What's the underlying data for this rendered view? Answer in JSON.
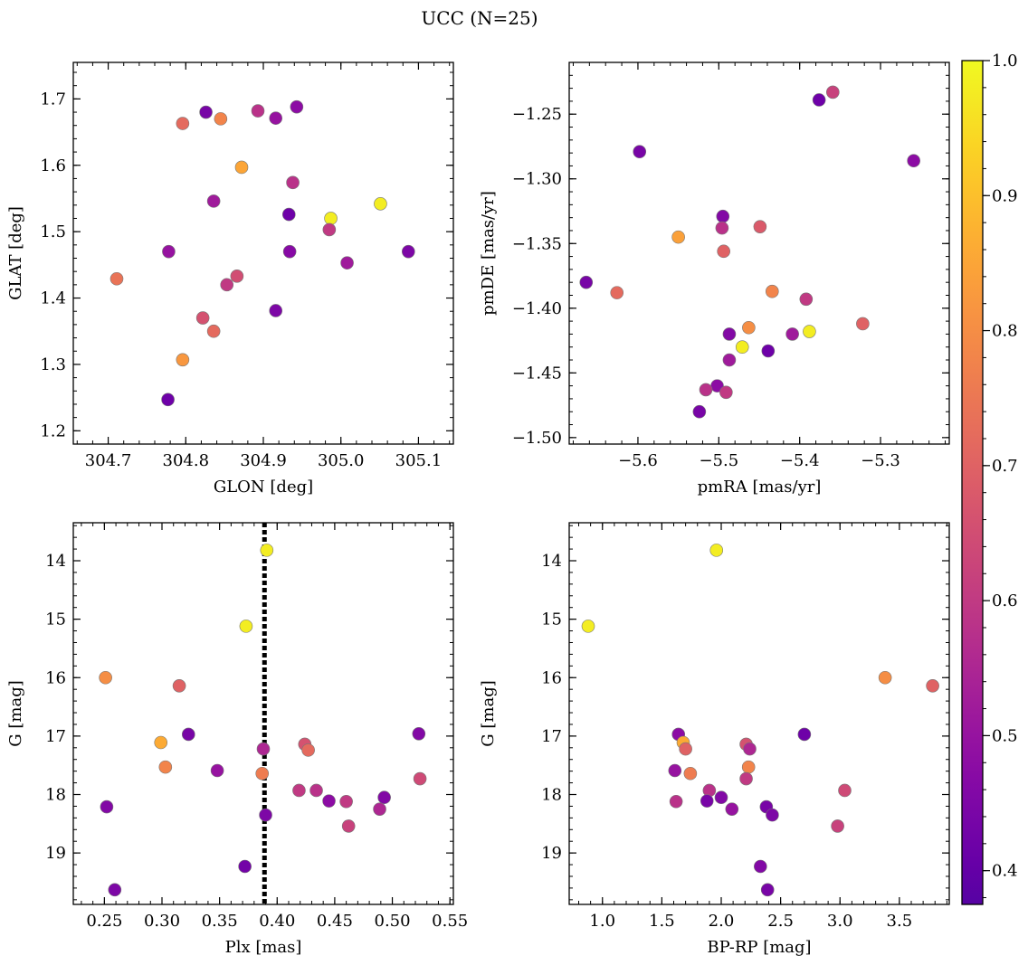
{
  "title": "UCC (N=25)",
  "chart_data": [
    {
      "type": "scatter",
      "xlabel": "GLON [deg]",
      "ylabel": "GLAT [deg]",
      "xlim": [
        304.655,
        305.145
      ],
      "ylim": [
        1.18,
        1.755
      ],
      "xticks": [
        304.7,
        304.8,
        304.9,
        305.0,
        305.1
      ],
      "xtick_labels": [
        "304.7",
        "304.8",
        "304.9",
        "305.0",
        "305.1"
      ],
      "yticks": [
        1.2,
        1.3,
        1.4,
        1.5,
        1.6,
        1.7
      ],
      "ytick_labels": [
        "1.2",
        "1.3",
        "1.4",
        "1.5",
        "1.6",
        "1.7"
      ],
      "y_inverted": false,
      "points": [
        {
          "x": 304.987,
          "y": 1.52,
          "c": 0.98
        },
        {
          "x": 304.893,
          "y": 1.682,
          "c": 0.58
        },
        {
          "x": 304.777,
          "y": 1.247,
          "c": 0.42
        },
        {
          "x": 304.796,
          "y": 1.307,
          "c": 0.82
        },
        {
          "x": 304.866,
          "y": 1.433,
          "c": 0.65
        },
        {
          "x": 305.087,
          "y": 1.47,
          "c": 0.45
        },
        {
          "x": 304.836,
          "y": 1.35,
          "c": 0.72
        },
        {
          "x": 304.778,
          "y": 1.47,
          "c": 0.5
        },
        {
          "x": 304.938,
          "y": 1.574,
          "c": 0.58
        },
        {
          "x": 304.872,
          "y": 1.597,
          "c": 0.85
        },
        {
          "x": 304.836,
          "y": 1.546,
          "c": 0.52
        },
        {
          "x": 305.008,
          "y": 1.453,
          "c": 0.52
        },
        {
          "x": 304.822,
          "y": 1.37,
          "c": 0.66
        },
        {
          "x": 304.845,
          "y": 1.67,
          "c": 0.78
        },
        {
          "x": 304.985,
          "y": 1.503,
          "c": 0.6
        },
        {
          "x": 304.916,
          "y": 1.381,
          "c": 0.45
        },
        {
          "x": 304.853,
          "y": 1.42,
          "c": 0.6
        },
        {
          "x": 305.051,
          "y": 1.542,
          "c": 0.98
        },
        {
          "x": 304.934,
          "y": 1.47,
          "c": 0.47
        },
        {
          "x": 304.916,
          "y": 1.671,
          "c": 0.5
        },
        {
          "x": 304.933,
          "y": 1.526,
          "c": 0.42
        },
        {
          "x": 304.711,
          "y": 1.429,
          "c": 0.74
        },
        {
          "x": 304.796,
          "y": 1.663,
          "c": 0.72
        },
        {
          "x": 304.943,
          "y": 1.688,
          "c": 0.48
        },
        {
          "x": 304.826,
          "y": 1.68,
          "c": 0.44
        }
      ]
    },
    {
      "type": "scatter",
      "xlabel": "pmRA [mas/yr]",
      "ylabel": "pmDE [mas/yr]",
      "xlim": [
        -5.685,
        -5.215
      ],
      "ylim": [
        -1.505,
        -1.21
      ],
      "xticks": [
        -5.6,
        -5.5,
        -5.4,
        -5.3
      ],
      "xtick_labels": [
        "−5.6",
        "−5.5",
        "−5.4",
        "−5.3"
      ],
      "yticks": [
        -1.5,
        -1.45,
        -1.4,
        -1.35,
        -1.3,
        -1.25
      ],
      "ytick_labels": [
        "−1.50",
        "−1.45",
        "−1.40",
        "−1.35",
        "−1.30",
        "−1.25"
      ],
      "y_inverted": false,
      "points": [
        {
          "x": -5.471,
          "y": -1.43,
          "c": 0.98
        },
        {
          "x": -5.388,
          "y": -1.418,
          "c": 0.98
        },
        {
          "x": -5.359,
          "y": -1.233,
          "c": 0.62
        },
        {
          "x": -5.376,
          "y": -1.239,
          "c": 0.42
        },
        {
          "x": -5.598,
          "y": -1.279,
          "c": 0.44
        },
        {
          "x": -5.259,
          "y": -1.286,
          "c": 0.48
        },
        {
          "x": -5.495,
          "y": -1.329,
          "c": 0.46
        },
        {
          "x": -5.496,
          "y": -1.338,
          "c": 0.58
        },
        {
          "x": -5.449,
          "y": -1.337,
          "c": 0.68
        },
        {
          "x": -5.55,
          "y": -1.345,
          "c": 0.84
        },
        {
          "x": -5.494,
          "y": -1.356,
          "c": 0.7
        },
        {
          "x": -5.664,
          "y": -1.38,
          "c": 0.44
        },
        {
          "x": -5.626,
          "y": -1.388,
          "c": 0.72
        },
        {
          "x": -5.434,
          "y": -1.387,
          "c": 0.78
        },
        {
          "x": -5.392,
          "y": -1.393,
          "c": 0.6
        },
        {
          "x": -5.322,
          "y": -1.412,
          "c": 0.7
        },
        {
          "x": -5.463,
          "y": -1.415,
          "c": 0.8
        },
        {
          "x": -5.487,
          "y": -1.42,
          "c": 0.46
        },
        {
          "x": -5.409,
          "y": -1.42,
          "c": 0.52
        },
        {
          "x": -5.439,
          "y": -1.433,
          "c": 0.42
        },
        {
          "x": -5.487,
          "y": -1.44,
          "c": 0.52
        },
        {
          "x": -5.502,
          "y": -1.46,
          "c": 0.48
        },
        {
          "x": -5.516,
          "y": -1.463,
          "c": 0.58
        },
        {
          "x": -5.491,
          "y": -1.465,
          "c": 0.6
        },
        {
          "x": -5.524,
          "y": -1.48,
          "c": 0.44
        }
      ]
    },
    {
      "type": "scatter",
      "xlabel": "Plx [mas]",
      "ylabel": "G [mag]",
      "xlim": [
        0.223,
        0.553
      ],
      "ylim": [
        13.35,
        19.88
      ],
      "xticks": [
        0.25,
        0.3,
        0.35,
        0.4,
        0.45,
        0.5,
        0.55
      ],
      "xtick_labels": [
        "0.25",
        "0.30",
        "0.35",
        "0.40",
        "0.45",
        "0.50",
        "0.55"
      ],
      "yticks": [
        14,
        15,
        16,
        17,
        18,
        19
      ],
      "ytick_labels": [
        "14",
        "15",
        "16",
        "17",
        "18",
        "19"
      ],
      "y_inverted": true,
      "vline": 0.389,
      "points": [
        {
          "x": 0.391,
          "y": 13.82,
          "c": 0.98
        },
        {
          "x": 0.373,
          "y": 15.12,
          "c": 0.98
        },
        {
          "x": 0.251,
          "y": 16.0,
          "c": 0.8
        },
        {
          "x": 0.315,
          "y": 16.14,
          "c": 0.7
        },
        {
          "x": 0.523,
          "y": 16.96,
          "c": 0.46
        },
        {
          "x": 0.323,
          "y": 16.97,
          "c": 0.44
        },
        {
          "x": 0.299,
          "y": 17.11,
          "c": 0.86
        },
        {
          "x": 0.424,
          "y": 17.14,
          "c": 0.66
        },
        {
          "x": 0.388,
          "y": 17.22,
          "c": 0.55
        },
        {
          "x": 0.427,
          "y": 17.24,
          "c": 0.72
        },
        {
          "x": 0.303,
          "y": 17.53,
          "c": 0.78
        },
        {
          "x": 0.348,
          "y": 17.59,
          "c": 0.5
        },
        {
          "x": 0.387,
          "y": 17.64,
          "c": 0.76
        },
        {
          "x": 0.524,
          "y": 17.73,
          "c": 0.64
        },
        {
          "x": 0.419,
          "y": 17.93,
          "c": 0.6
        },
        {
          "x": 0.434,
          "y": 17.93,
          "c": 0.58
        },
        {
          "x": 0.493,
          "y": 18.05,
          "c": 0.46
        },
        {
          "x": 0.445,
          "y": 18.11,
          "c": 0.48
        },
        {
          "x": 0.46,
          "y": 18.12,
          "c": 0.6
        },
        {
          "x": 0.252,
          "y": 18.21,
          "c": 0.46
        },
        {
          "x": 0.489,
          "y": 18.25,
          "c": 0.55
        },
        {
          "x": 0.39,
          "y": 18.35,
          "c": 0.45
        },
        {
          "x": 0.462,
          "y": 18.54,
          "c": 0.62
        },
        {
          "x": 0.372,
          "y": 19.23,
          "c": 0.43
        },
        {
          "x": 0.259,
          "y": 19.63,
          "c": 0.45
        }
      ]
    },
    {
      "type": "scatter",
      "xlabel": "BP-RP [mag]",
      "ylabel": "G [mag]",
      "xlim": [
        0.72,
        3.92
      ],
      "ylim": [
        13.35,
        19.88
      ],
      "xticks": [
        1.0,
        1.5,
        2.0,
        2.5,
        3.0,
        3.5
      ],
      "xtick_labels": [
        "1.0",
        "1.5",
        "2.0",
        "2.5",
        "3.0",
        "3.5"
      ],
      "yticks": [
        14,
        15,
        16,
        17,
        18,
        19
      ],
      "ytick_labels": [
        "14",
        "15",
        "16",
        "17",
        "18",
        "19"
      ],
      "y_inverted": true,
      "points": [
        {
          "x": 1.96,
          "y": 13.82,
          "c": 0.98
        },
        {
          "x": 0.88,
          "y": 15.12,
          "c": 0.98
        },
        {
          "x": 3.38,
          "y": 16.0,
          "c": 0.8
        },
        {
          "x": 3.78,
          "y": 16.14,
          "c": 0.7
        },
        {
          "x": 1.64,
          "y": 16.97,
          "c": 0.48
        },
        {
          "x": 2.7,
          "y": 16.97,
          "c": 0.42
        },
        {
          "x": 1.68,
          "y": 17.11,
          "c": 0.86
        },
        {
          "x": 2.21,
          "y": 17.14,
          "c": 0.66
        },
        {
          "x": 1.7,
          "y": 17.22,
          "c": 0.7
        },
        {
          "x": 2.24,
          "y": 17.22,
          "c": 0.55
        },
        {
          "x": 2.23,
          "y": 17.53,
          "c": 0.78
        },
        {
          "x": 1.61,
          "y": 17.59,
          "c": 0.5
        },
        {
          "x": 1.74,
          "y": 17.64,
          "c": 0.76
        },
        {
          "x": 2.21,
          "y": 17.73,
          "c": 0.6
        },
        {
          "x": 1.9,
          "y": 17.93,
          "c": 0.58
        },
        {
          "x": 3.04,
          "y": 17.93,
          "c": 0.64
        },
        {
          "x": 2.0,
          "y": 18.05,
          "c": 0.46
        },
        {
          "x": 1.88,
          "y": 18.11,
          "c": 0.44
        },
        {
          "x": 1.62,
          "y": 18.12,
          "c": 0.58
        },
        {
          "x": 2.38,
          "y": 18.21,
          "c": 0.44
        },
        {
          "x": 2.09,
          "y": 18.25,
          "c": 0.5
        },
        {
          "x": 2.43,
          "y": 18.35,
          "c": 0.45
        },
        {
          "x": 2.98,
          "y": 18.54,
          "c": 0.62
        },
        {
          "x": 2.33,
          "y": 19.23,
          "c": 0.46
        },
        {
          "x": 2.39,
          "y": 19.63,
          "c": 0.44
        }
      ]
    }
  ],
  "colorbar": {
    "colormap": "plasma",
    "vmin": 0.375,
    "vmax": 1.0,
    "ticks": [
      0.4,
      0.5,
      0.6,
      0.7,
      0.8,
      0.9,
      1.0
    ],
    "tick_labels": [
      "0.4",
      "0.5",
      "0.6",
      "0.7",
      "0.8",
      "0.9",
      "1.0"
    ]
  }
}
